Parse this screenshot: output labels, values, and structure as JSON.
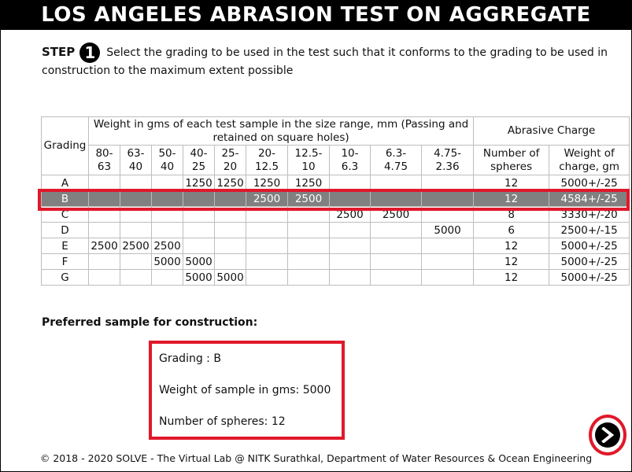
{
  "title": "LOS ANGELES ABRASION TEST ON AGGREGATE",
  "step": {
    "label": "STEP",
    "number": "1",
    "instruction": "Select the grading to be used in the test such that it conforms to the grading to be used in construction to the maximum extent possible"
  },
  "table": {
    "header_grading": "Grading",
    "header_weight_group": "Weight in gms of each test sample in the size range, mm (Passing and retained on square holes)",
    "header_abrasive_group": "Abrasive Charge",
    "size_ranges": [
      {
        "top": "80-",
        "bottom": "63"
      },
      {
        "top": "63-",
        "bottom": "40"
      },
      {
        "top": "50-",
        "bottom": "40"
      },
      {
        "top": "40-",
        "bottom": "25"
      },
      {
        "top": "25-",
        "bottom": "20"
      },
      {
        "top": "20-",
        "bottom": "12.5"
      },
      {
        "top": "12.5-",
        "bottom": "10"
      },
      {
        "top": "10-",
        "bottom": "6.3"
      },
      {
        "top": "6.3-",
        "bottom": "4.75"
      },
      {
        "top": "4.75-",
        "bottom": "2.36"
      }
    ],
    "header_spheres": {
      "top": "Number of",
      "bottom": "spheres"
    },
    "header_charge": {
      "top": "Weight of",
      "bottom": "charge, gm"
    },
    "selected_grading": "B",
    "rows": [
      {
        "grading": "A",
        "cells": [
          "",
          "",
          "",
          "1250",
          "1250",
          "1250",
          "1250",
          "",
          "",
          ""
        ],
        "spheres": "12",
        "charge": "5000+/-25"
      },
      {
        "grading": "B",
        "cells": [
          "",
          "",
          "",
          "",
          "",
          "2500",
          "2500",
          "",
          "",
          ""
        ],
        "spheres": "12",
        "charge": "4584+/-25"
      },
      {
        "grading": "C",
        "cells": [
          "",
          "",
          "",
          "",
          "",
          "",
          "",
          "2500",
          "2500",
          ""
        ],
        "spheres": "8",
        "charge": "3330+/-20"
      },
      {
        "grading": "D",
        "cells": [
          "",
          "",
          "",
          "",
          "",
          "",
          "",
          "",
          "",
          "5000"
        ],
        "spheres": "6",
        "charge": "2500+/-15"
      },
      {
        "grading": "E",
        "cells": [
          "2500",
          "2500",
          "2500",
          "",
          "",
          "",
          "",
          "",
          "",
          ""
        ],
        "spheres": "12",
        "charge": "5000+/-25"
      },
      {
        "grading": "F",
        "cells": [
          "",
          "",
          "5000",
          "5000",
          "",
          "",
          "",
          "",
          "",
          ""
        ],
        "spheres": "12",
        "charge": "5000+/-25"
      },
      {
        "grading": "G",
        "cells": [
          "",
          "",
          "",
          "5000",
          "5000",
          "",
          "",
          "",
          "",
          ""
        ],
        "spheres": "12",
        "charge": "5000+/-25"
      }
    ]
  },
  "preferred": {
    "heading": "Preferred sample for construction:",
    "grading": "Grading : B",
    "weight": "Weight of sample in gms: 5000",
    "spheres": "Number of spheres: 12"
  },
  "next_button_icon": "arrow-right-icon",
  "footer": "© 2018 - 2020 SOLVE - The Virtual Lab @ NITK Surathkal, Department of Water Resources & Ocean Engineering",
  "colors": {
    "highlight": "#e0192a",
    "selected_row": "#808080",
    "title_bg": "#000000"
  }
}
